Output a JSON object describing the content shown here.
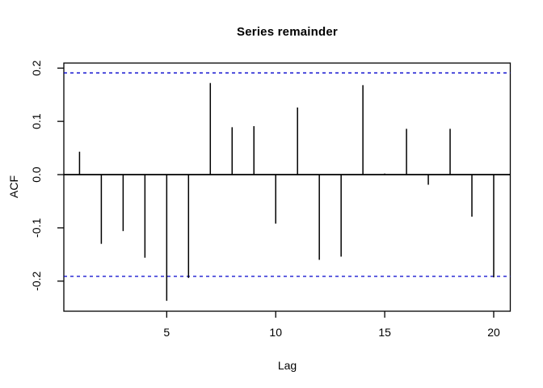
{
  "figure": {
    "title": "Series remainder",
    "xlabel": "Lag",
    "ylabel": "ACF"
  },
  "chart_data": {
    "type": "bar",
    "subtype": "acf-stem-plot",
    "title": "Series remainder",
    "xlabel": "Lag",
    "ylabel": "ACF",
    "x": [
      1,
      2,
      3,
      4,
      5,
      6,
      7,
      8,
      9,
      10,
      11,
      12,
      13,
      14,
      15,
      16,
      17,
      18,
      19,
      20
    ],
    "values": [
      0.043,
      -0.13,
      -0.106,
      -0.156,
      -0.237,
      -0.194,
      0.172,
      0.089,
      0.091,
      -0.092,
      0.126,
      -0.16,
      -0.154,
      0.168,
      0.002,
      0.086,
      -0.019,
      0.086,
      -0.079,
      -0.193
    ],
    "confidence_bounds": {
      "upper": 0.191,
      "lower": -0.191,
      "line_style": "dashed",
      "color": "#0000cc"
    },
    "x_ticks": [
      5,
      10,
      15,
      20
    ],
    "x_tick_labels": [
      "5",
      "10",
      "15",
      "20"
    ],
    "y_ticks": [
      0.2,
      0.1,
      0.0,
      -0.1,
      -0.2
    ],
    "y_tick_labels": [
      "0.2",
      "0.1",
      "0.0",
      "-0.1",
      "-0.2"
    ],
    "xlim": [
      0.28,
      20.76
    ],
    "ylim": [
      -0.2565,
      0.2095
    ],
    "grid": false,
    "legend": null,
    "colors": {
      "spike": "#000000",
      "axis": "#000000",
      "zero_line": "#000000",
      "ci": "#0000cc",
      "background": "#ffffff"
    }
  }
}
